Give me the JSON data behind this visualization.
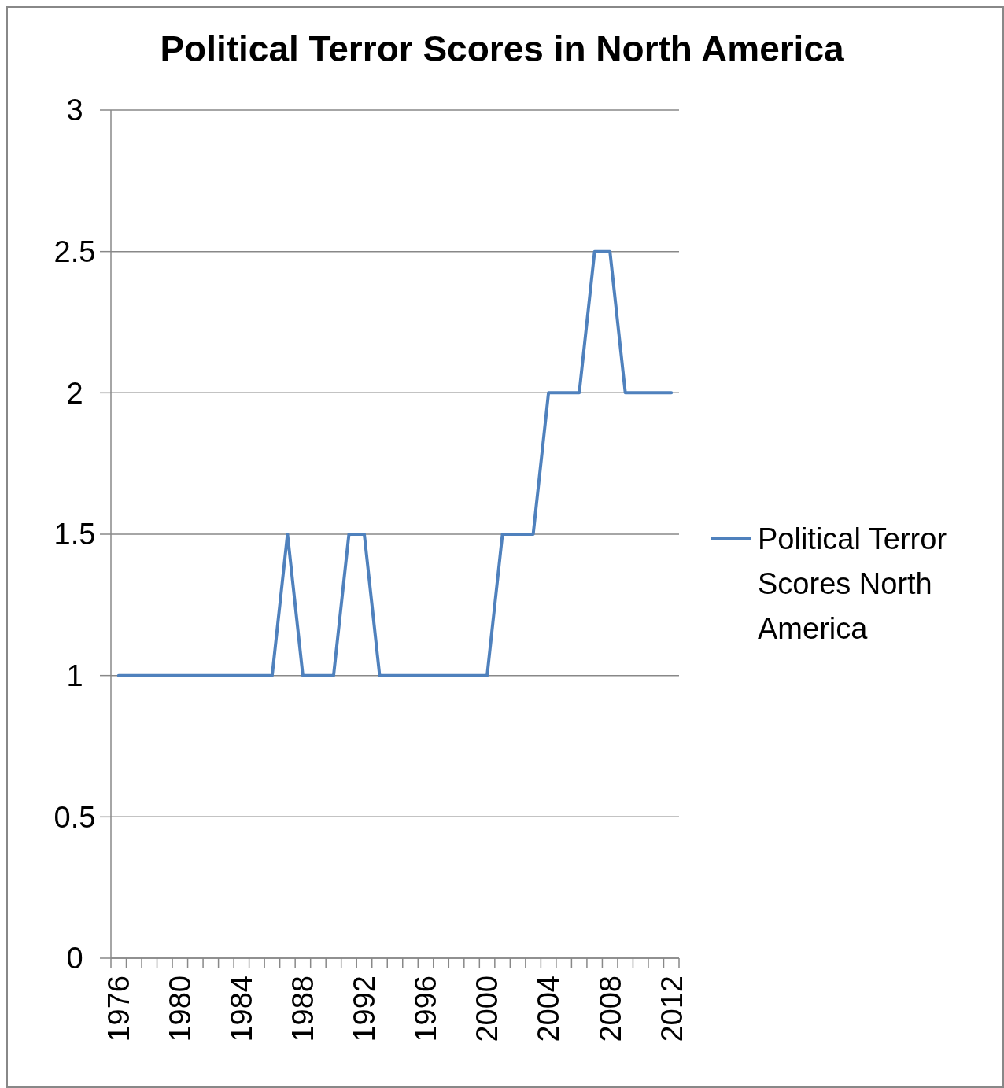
{
  "chart_data": {
    "type": "line",
    "title": "Political Terror Scores in North America",
    "categories": [
      "1976",
      null,
      null,
      null,
      "1980",
      null,
      null,
      null,
      "1984",
      null,
      null,
      null,
      "1988",
      null,
      null,
      null,
      "1992",
      null,
      null,
      null,
      "1996",
      null,
      null,
      null,
      "2000",
      null,
      null,
      null,
      "2004",
      null,
      null,
      null,
      "2008",
      null,
      null,
      null,
      "2012"
    ],
    "series": [
      {
        "name": "Political Terror Scores North America",
        "color": "#4f81bd",
        "values": [
          1,
          1,
          1,
          1,
          1,
          1,
          1,
          1,
          1,
          1,
          1,
          1.5,
          1,
          1,
          1,
          1.5,
          1.5,
          1,
          1,
          1,
          1,
          1,
          1,
          1,
          1,
          1.5,
          1.5,
          1.5,
          2,
          2,
          2,
          2.5,
          2.5,
          2,
          2,
          2,
          2
        ]
      }
    ],
    "ylim": [
      0,
      3
    ],
    "yticks": [
      0,
      0.5,
      1,
      1.5,
      2,
      2.5,
      3
    ],
    "grid": "y",
    "legend": "right"
  }
}
